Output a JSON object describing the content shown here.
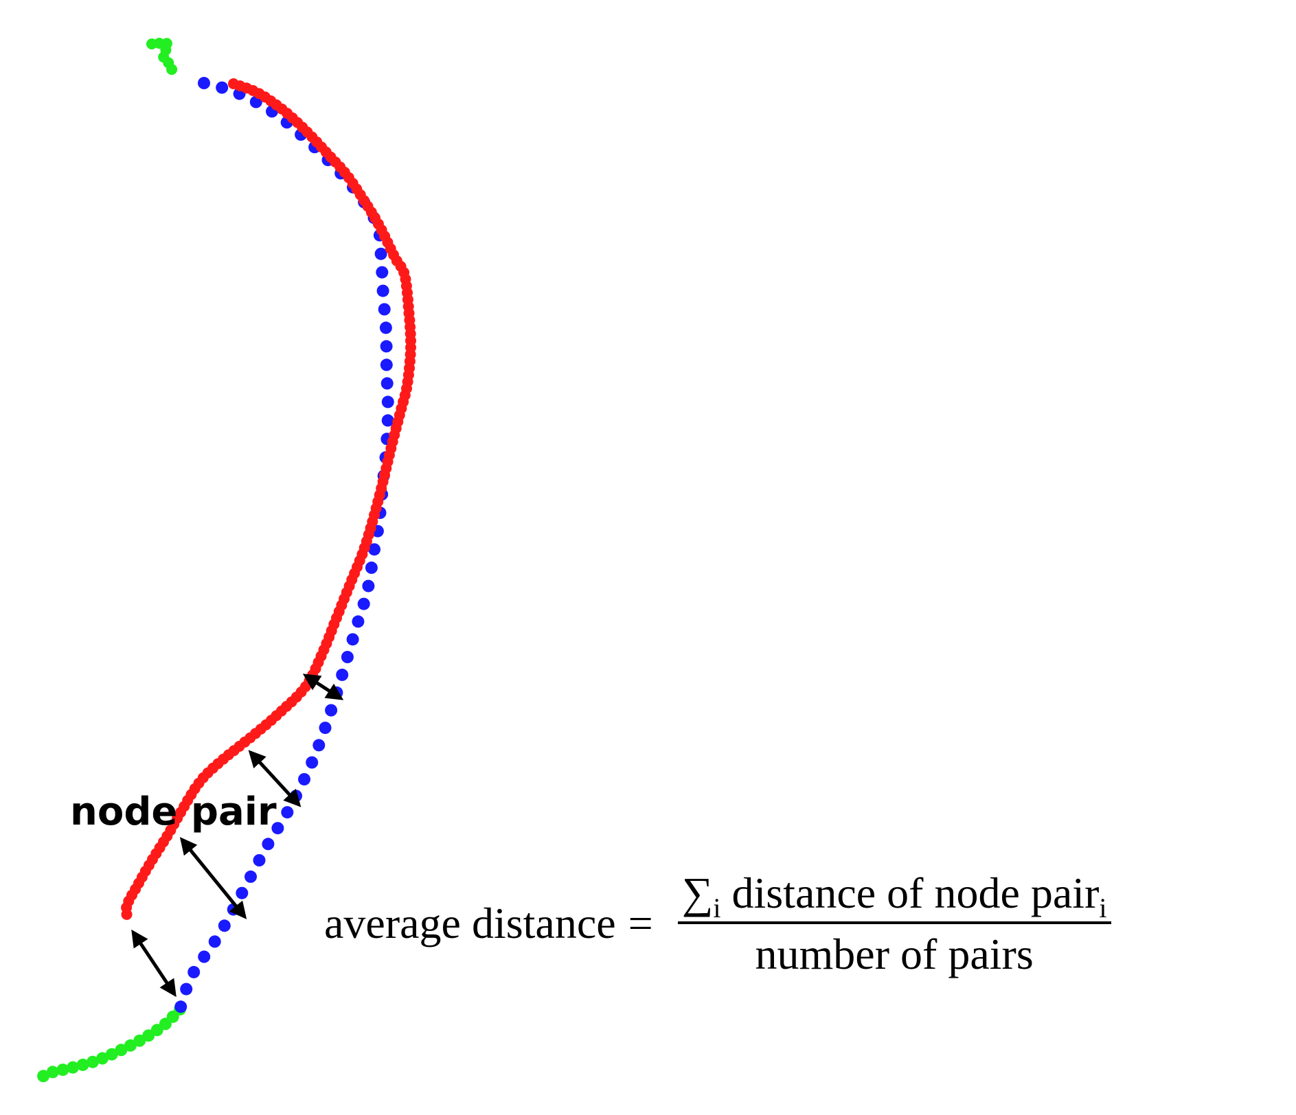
{
  "labels": {
    "node_pair": "node pair"
  },
  "formula": {
    "lhs": "average distance",
    "equals": "=",
    "sum_symbol": "∑",
    "sum_index": "i",
    "numerator_text": "distance of node pair",
    "numerator_index": "i",
    "denominator": "number of pairs"
  },
  "colors": {
    "red_track": "#ff1a1a",
    "blue_track": "#1a1aff",
    "green_track": "#22ee22",
    "arrow": "#000000"
  }
}
